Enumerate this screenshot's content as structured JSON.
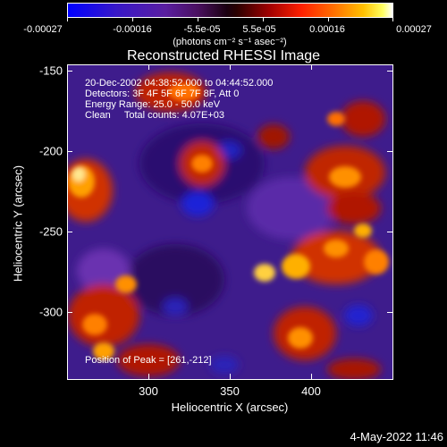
{
  "colorbar": {
    "labels": [
      "-0.00027",
      "-0.00016",
      "-5.5e-05",
      "5.5e-05",
      "0.00016",
      "0.00027"
    ],
    "units": "(photons cm⁻² s⁻¹ asec⁻²)"
  },
  "title": "Reconstructed RHESSI Image",
  "info": {
    "time_range": "20-Dec-2002 04:38:52.000 to 04:44:52.000",
    "detectors": "Detectors: 3F 4F 5F 6F 7F 8F, Att 0",
    "energy": "Energy Range: 25.0 - 50.0 keV",
    "clean": "Clean     Total counts: 4.07E+03",
    "peak": "Position of Peak = [261,-212]"
  },
  "axes": {
    "xlabel": "Heliocentric X (arcsec)",
    "ylabel": "Heliocentric Y (arcsec)",
    "xticks": [
      "300",
      "350",
      "400"
    ],
    "yticks": [
      "-150",
      "-200",
      "-250",
      "-300"
    ]
  },
  "date_stamp": "4-May-2022 11:46",
  "colors": {
    "background": "#000000",
    "text": "#ffffff"
  }
}
